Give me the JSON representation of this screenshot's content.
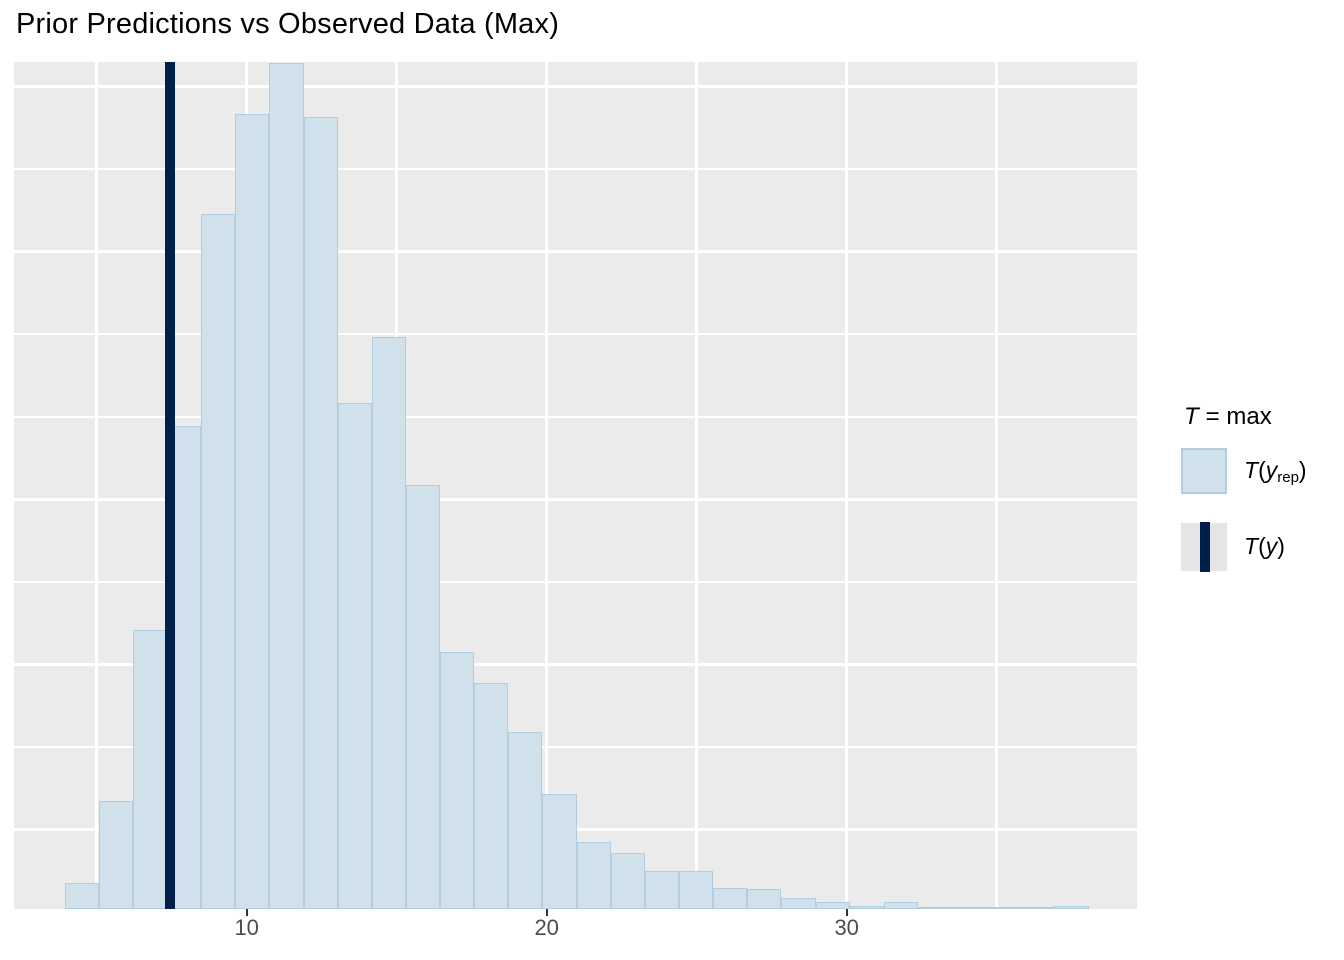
{
  "chart_data": {
    "type": "histogram",
    "title": "Prior Predictions vs Observed Data (Max)",
    "statistic": "max",
    "series": [
      {
        "name": "T(y_rep)",
        "role": "replicated-data test statistics (histogram)"
      },
      {
        "name": "T(y)",
        "role": "observed test statistic (vertical line)",
        "value": 7.45
      }
    ],
    "bins": {
      "start": 3.93,
      "width": 1.1378,
      "count": 30
    },
    "counts": [
      16,
      66,
      170,
      295,
      424,
      485,
      516,
      483,
      309,
      349,
      259,
      157,
      138,
      108,
      70,
      41,
      34,
      23,
      23,
      13,
      12,
      7,
      4,
      2,
      4,
      1,
      1,
      1,
      1,
      2
    ],
    "observed_value": 7.45,
    "x_axis": {
      "ticks": [
        10,
        20,
        30
      ],
      "tick_labels": [
        "10",
        "20",
        "30"
      ],
      "gridlines": [
        5,
        10,
        15,
        20,
        25,
        30,
        35
      ],
      "range": [
        2.24,
        39.68
      ]
    },
    "y_axis": {
      "labels_shown": false,
      "gridline_rows": 10,
      "range_counts": [
        0,
        517
      ]
    },
    "legend_position": "right",
    "grid": "on"
  },
  "legend": {
    "title_var": "T",
    "title_rest": "= max",
    "items": [
      {
        "fn": "T",
        "open": "(",
        "arg": "y",
        "sub": "rep",
        "close": ")"
      },
      {
        "fn": "T",
        "open": "(",
        "arg": "y",
        "close": ")"
      }
    ]
  },
  "colors": {
    "histogram_fill": "#d1e1ec",
    "histogram_outline": "#b3cde0",
    "observed_line": "#011f4b",
    "panel_background": "#ebebeb",
    "gridline": "#ffffff",
    "axis_text": "#4d4d4d",
    "title_text": "#000000"
  }
}
